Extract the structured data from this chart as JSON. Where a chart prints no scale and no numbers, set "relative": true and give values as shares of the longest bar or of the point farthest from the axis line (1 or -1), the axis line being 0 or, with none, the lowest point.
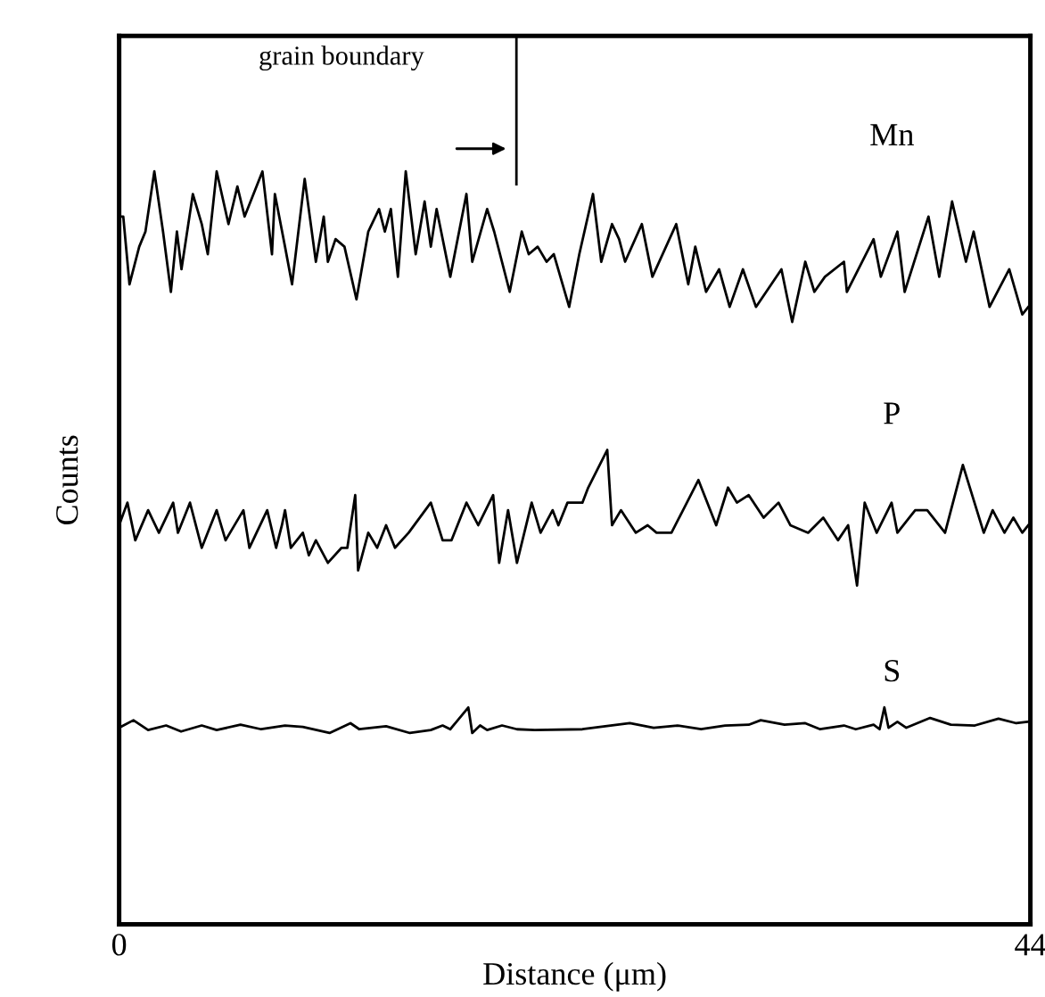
{
  "chart_data": {
    "type": "line",
    "relative": true,
    "xlabel": "Distance (μm)",
    "ylabel": "Counts",
    "xlim": [
      0,
      44
    ],
    "xticks": [
      0,
      44
    ],
    "tick_labels": "x",
    "legend": false,
    "marker": "none",
    "line_style": "solid",
    "annotations": [
      "grain boundary"
    ],
    "series": [
      {
        "name": "Mn",
        "color": "#000000",
        "x": [
          0,
          0.2,
          0.5,
          0.97,
          1.27,
          1.7,
          2.12,
          2.5,
          2.79,
          3.01,
          3.56,
          3.99,
          4.28,
          4.71,
          5.28,
          5.71,
          6.06,
          6.92,
          7.38,
          7.52,
          8.01,
          8.35,
          8.96,
          9.5,
          9.88,
          10.08,
          10.45,
          10.88,
          11.46,
          12.03,
          12.55,
          12.83,
          13.12,
          13.46,
          13.84,
          14.32,
          14.75,
          15.05,
          15.33,
          15.99,
          16.77,
          17.05,
          17.77,
          18.11,
          18.86,
          19.44,
          19.78,
          20.21,
          20.64,
          20.99,
          21.73,
          22.22,
          22.88,
          23.28,
          23.8,
          24.14,
          24.43,
          25.24,
          25.75,
          26.9,
          27.48,
          27.82,
          28.34,
          28.97,
          29.48,
          30.12,
          30.75,
          31.98,
          32.5,
          33.13,
          33.57,
          34.08,
          35.0,
          35.14,
          36.43,
          36.78,
          37.58,
          37.93,
          39.08,
          39.6,
          40.22,
          40.89,
          41.26,
          42.03,
          42.98,
          43.61,
          43.9
        ],
        "values": [
          0.94,
          0.94,
          0.85,
          0.9,
          0.92,
          1.0,
          0.92,
          0.84,
          0.92,
          0.87,
          0.97,
          0.93,
          0.89,
          1.0,
          0.93,
          0.98,
          0.94,
          1.0,
          0.89,
          0.97,
          0.9,
          0.85,
          0.99,
          0.88,
          0.94,
          0.88,
          0.91,
          0.9,
          0.83,
          0.92,
          0.95,
          0.92,
          0.95,
          0.86,
          1.0,
          0.89,
          0.96,
          0.9,
          0.95,
          0.86,
          0.97,
          0.88,
          0.95,
          0.92,
          0.84,
          0.92,
          0.89,
          0.9,
          0.88,
          0.89,
          0.82,
          0.89,
          0.97,
          0.88,
          0.93,
          0.91,
          0.88,
          0.93,
          0.86,
          0.93,
          0.85,
          0.9,
          0.84,
          0.87,
          0.82,
          0.87,
          0.82,
          0.87,
          0.8,
          0.88,
          0.84,
          0.86,
          0.88,
          0.84,
          0.91,
          0.86,
          0.92,
          0.84,
          0.94,
          0.86,
          0.96,
          0.88,
          0.92,
          0.82,
          0.87,
          0.81,
          0.82
        ]
      },
      {
        "name": "P",
        "color": "#000000",
        "x": [
          0,
          0.4,
          0.78,
          1.4,
          1.92,
          2.61,
          2.84,
          3.42,
          3.99,
          4.71,
          5.14,
          6.0,
          6.29,
          7.15,
          7.58,
          7.86,
          8.01,
          8.29,
          8.87,
          9.16,
          9.5,
          10.08,
          10.74,
          11.02,
          11.4,
          11.54,
          12.03,
          12.46,
          12.89,
          13.32,
          13.98,
          15.05,
          15.62,
          16.05,
          16.77,
          17.34,
          18.06,
          18.35,
          18.78,
          19.21,
          19.92,
          20.35,
          20.93,
          21.21,
          21.65,
          21.94,
          22.37,
          22.65,
          23.57,
          23.8,
          24.23,
          24.95,
          25.52,
          25.95,
          26.67,
          27.97,
          28.83,
          29.4,
          29.83,
          30.4,
          31.12,
          31.84,
          32.41,
          33.27,
          34.0,
          34.71,
          35.2,
          35.63,
          36.0,
          36.58,
          37.3,
          37.58,
          38.44,
          39.02,
          39.88,
          40.74,
          41.75,
          42.18,
          42.75,
          43.18,
          43.61,
          43.9
        ],
        "values": [
          0.53,
          0.56,
          0.51,
          0.55,
          0.52,
          0.56,
          0.52,
          0.56,
          0.5,
          0.55,
          0.51,
          0.55,
          0.5,
          0.55,
          0.5,
          0.53,
          0.55,
          0.5,
          0.52,
          0.49,
          0.51,
          0.48,
          0.5,
          0.5,
          0.57,
          0.47,
          0.52,
          0.5,
          0.53,
          0.5,
          0.52,
          0.56,
          0.51,
          0.51,
          0.56,
          0.53,
          0.57,
          0.48,
          0.55,
          0.48,
          0.56,
          0.52,
          0.55,
          0.53,
          0.56,
          0.56,
          0.56,
          0.58,
          0.63,
          0.53,
          0.55,
          0.52,
          0.53,
          0.52,
          0.52,
          0.59,
          0.53,
          0.58,
          0.56,
          0.57,
          0.54,
          0.56,
          0.53,
          0.52,
          0.54,
          0.51,
          0.53,
          0.45,
          0.56,
          0.52,
          0.56,
          0.52,
          0.55,
          0.55,
          0.52,
          0.61,
          0.52,
          0.55,
          0.52,
          0.54,
          0.52,
          0.53
        ]
      },
      {
        "name": "S",
        "color": "#000000",
        "x": [
          0,
          0.69,
          1.4,
          2.27,
          2.99,
          3.99,
          4.71,
          5.86,
          6.86,
          8.01,
          8.87,
          10.16,
          11.17,
          11.6,
          12.89,
          14.04,
          15.05,
          15.62,
          15.99,
          16.86,
          17.05,
          17.43,
          17.77,
          18.49,
          19.21,
          20.07,
          22.37,
          24.66,
          25.81,
          26.96,
          28.1,
          29.26,
          30.4,
          30.98,
          32.13,
          33.13,
          33.85,
          35.0,
          35.57,
          36.43,
          36.72,
          36.95,
          37.15,
          37.58,
          38.01,
          39.16,
          40.16,
          41.32,
          42.46,
          43.32,
          43.9
        ],
        "values": [
          0.261,
          0.271,
          0.258,
          0.264,
          0.256,
          0.264,
          0.258,
          0.265,
          0.259,
          0.264,
          0.262,
          0.254,
          0.267,
          0.259,
          0.263,
          0.254,
          0.258,
          0.264,
          0.259,
          0.288,
          0.254,
          0.264,
          0.258,
          0.264,
          0.259,
          0.258,
          0.259,
          0.267,
          0.261,
          0.264,
          0.259,
          0.264,
          0.265,
          0.271,
          0.265,
          0.267,
          0.259,
          0.264,
          0.259,
          0.265,
          0.259,
          0.288,
          0.261,
          0.269,
          0.261,
          0.274,
          0.265,
          0.264,
          0.273,
          0.267,
          0.269
        ]
      }
    ]
  }
}
